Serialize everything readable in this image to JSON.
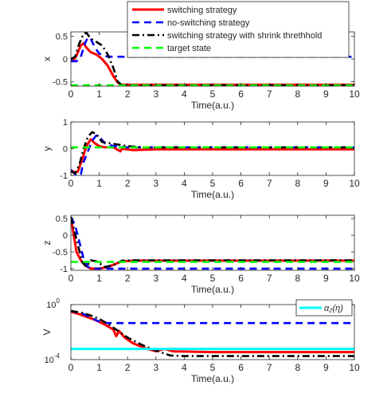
{
  "legend_main": {
    "entries": [
      {
        "label": "switching strategy",
        "color": "#ff0000",
        "dash": "solid"
      },
      {
        "label": "no-switching strategy",
        "color": "#0000ff",
        "dash": "dashed"
      },
      {
        "label": "switching strategy with shrink threthhold",
        "color": "#000000",
        "dash": "dashdot"
      },
      {
        "label": "target state",
        "color": "#00ff00",
        "dash": "dashed"
      }
    ]
  },
  "legend_v": {
    "entries": [
      {
        "label": "α₂(η)",
        "color": "#00ffff",
        "dash": "solid"
      }
    ]
  },
  "chart_data": [
    {
      "type": "line",
      "ylabel": "x",
      "xlabel": "Time(a.u.)",
      "xlim": [
        0,
        10
      ],
      "ylim": [
        -0.6,
        0.6
      ],
      "xticks": [
        "0",
        "1",
        "2",
        "3",
        "4",
        "5",
        "6",
        "7",
        "8",
        "9",
        "10"
      ],
      "yticks": [
        {
          "v": 0.5,
          "t": "0.5"
        },
        {
          "v": 0,
          "t": "0"
        },
        {
          "v": -0.5,
          "t": "-0.5"
        }
      ],
      "series": [
        {
          "name": "switching strategy",
          "points": [
            [
              0,
              0.0
            ],
            [
              0.1,
              -0.02
            ],
            [
              0.2,
              0.08
            ],
            [
              0.35,
              0.3
            ],
            [
              0.45,
              0.35
            ],
            [
              0.55,
              0.25
            ],
            [
              0.7,
              0.15
            ],
            [
              0.9,
              0.1
            ],
            [
              1.1,
              0.0
            ],
            [
              1.3,
              -0.15
            ],
            [
              1.5,
              -0.38
            ],
            [
              1.65,
              -0.52
            ],
            [
              1.75,
              -0.57
            ],
            [
              10,
              -0.57
            ]
          ]
        },
        {
          "name": "no-switching strategy",
          "points": [
            [
              0,
              -0.05
            ],
            [
              0.2,
              -0.05
            ],
            [
              0.35,
              0.05
            ],
            [
              0.5,
              0.35
            ],
            [
              0.6,
              0.48
            ],
            [
              0.7,
              0.45
            ],
            [
              0.85,
              0.25
            ],
            [
              1.0,
              0.12
            ],
            [
              1.2,
              0.06
            ],
            [
              1.5,
              0.05
            ],
            [
              2.0,
              0.05
            ],
            [
              10,
              0.05
            ]
          ]
        },
        {
          "name": "switching strategy with shrink threthhold",
          "points": [
            [
              0,
              0.0
            ],
            [
              0.15,
              0.05
            ],
            [
              0.3,
              0.35
            ],
            [
              0.45,
              0.56
            ],
            [
              0.55,
              0.58
            ],
            [
              0.7,
              0.45
            ],
            [
              0.9,
              0.38
            ],
            [
              1.1,
              0.3
            ],
            [
              1.3,
              0.1
            ],
            [
              1.5,
              -0.2
            ],
            [
              1.65,
              -0.5
            ],
            [
              1.8,
              -0.58
            ],
            [
              10,
              -0.58
            ]
          ]
        },
        {
          "name": "target state",
          "points": [
            [
              0,
              -0.58
            ],
            [
              10,
              -0.58
            ]
          ]
        }
      ]
    },
    {
      "type": "line",
      "ylabel": "y",
      "xlabel": "Time(a.u.)",
      "xlim": [
        0,
        10
      ],
      "ylim": [
        -1,
        1
      ],
      "xticks": [
        "0",
        "1",
        "2",
        "3",
        "4",
        "5",
        "6",
        "7",
        "8",
        "9",
        "10"
      ],
      "yticks": [
        {
          "v": 1,
          "t": "1"
        },
        {
          "v": 0,
          "t": "0"
        },
        {
          "v": -1,
          "t": "-1"
        }
      ],
      "series": [
        {
          "name": "switching strategy",
          "points": [
            [
              0,
              -0.8
            ],
            [
              0.15,
              -0.9
            ],
            [
              0.25,
              -0.85
            ],
            [
              0.4,
              -0.4
            ],
            [
              0.55,
              0.1
            ],
            [
              0.7,
              0.35
            ],
            [
              0.85,
              0.2
            ],
            [
              1.0,
              0.1
            ],
            [
              1.2,
              0.05
            ],
            [
              1.5,
              0.05
            ],
            [
              1.75,
              -0.1
            ],
            [
              1.8,
              0.0
            ],
            [
              2.2,
              -0.05
            ],
            [
              3,
              -0.02
            ],
            [
              10,
              -0.02
            ]
          ]
        },
        {
          "name": "no-switching strategy",
          "points": [
            [
              0,
              -0.8
            ],
            [
              0.2,
              -1.0
            ],
            [
              0.35,
              -0.95
            ],
            [
              0.45,
              -0.5
            ],
            [
              0.6,
              -0.1
            ],
            [
              0.75,
              0.3
            ],
            [
              0.9,
              0.5
            ],
            [
              1.0,
              0.45
            ],
            [
              1.2,
              0.2
            ],
            [
              1.5,
              0.1
            ],
            [
              2.0,
              0.05
            ],
            [
              10,
              0.05
            ]
          ]
        },
        {
          "name": "switching strategy with shrink threthhold",
          "points": [
            [
              0,
              -0.85
            ],
            [
              0.15,
              -0.92
            ],
            [
              0.3,
              -0.6
            ],
            [
              0.45,
              0.0
            ],
            [
              0.6,
              0.45
            ],
            [
              0.75,
              0.62
            ],
            [
              0.9,
              0.55
            ],
            [
              1.1,
              0.25
            ],
            [
              1.4,
              0.2
            ],
            [
              1.7,
              0.15
            ],
            [
              2.0,
              0.1
            ],
            [
              2.5,
              0.05
            ],
            [
              10,
              0.05
            ]
          ]
        },
        {
          "name": "target state",
          "points": [
            [
              0,
              0.05
            ],
            [
              10,
              0.05
            ]
          ]
        }
      ]
    },
    {
      "type": "line",
      "ylabel": "z",
      "xlabel": "Time(a.u.)",
      "xlim": [
        0,
        10
      ],
      "ylim": [
        -1.05,
        0.6
      ],
      "xticks": [
        "0",
        "1",
        "2",
        "3",
        "4",
        "5",
        "6",
        "7",
        "8",
        "9",
        "10"
      ],
      "yticks": [
        {
          "v": 0.5,
          "t": "0.5"
        },
        {
          "v": 0,
          "t": "0"
        },
        {
          "v": -0.5,
          "t": "-0.5"
        },
        {
          "v": -1,
          "t": "-1"
        }
      ],
      "series": [
        {
          "name": "switching strategy",
          "points": [
            [
              0,
              0.55
            ],
            [
              0.1,
              0.0
            ],
            [
              0.2,
              -0.5
            ],
            [
              0.35,
              -0.75
            ],
            [
              0.5,
              -0.9
            ],
            [
              0.7,
              -1.0
            ],
            [
              1.0,
              -1.0
            ],
            [
              1.3,
              -0.95
            ],
            [
              1.6,
              -0.85
            ],
            [
              1.8,
              -0.78
            ],
            [
              2.2,
              -0.76
            ],
            [
              10,
              -0.76
            ]
          ]
        },
        {
          "name": "no-switching strategy",
          "points": [
            [
              0,
              0.55
            ],
            [
              0.15,
              0.3
            ],
            [
              0.3,
              -0.2
            ],
            [
              0.45,
              -0.7
            ],
            [
              0.6,
              -0.95
            ],
            [
              0.8,
              -1.0
            ],
            [
              2.0,
              -1.0
            ],
            [
              10,
              -1.0
            ]
          ]
        },
        {
          "name": "switching strategy with shrink threthhold",
          "points": [
            [
              0,
              0.55
            ],
            [
              0.1,
              0.2
            ],
            [
              0.25,
              -0.3
            ],
            [
              0.4,
              -0.8
            ],
            [
              0.55,
              -0.95
            ],
            [
              0.7,
              -0.75
            ],
            [
              0.9,
              -0.78
            ],
            [
              1.2,
              -0.95
            ],
            [
              1.5,
              -0.9
            ],
            [
              1.8,
              -0.76
            ],
            [
              2.2,
              -0.75
            ],
            [
              10,
              -0.75
            ]
          ]
        },
        {
          "name": "target state",
          "points": [
            [
              0,
              -0.8
            ],
            [
              10,
              -0.8
            ]
          ]
        }
      ]
    },
    {
      "type": "line",
      "ylabel": "V",
      "xlabel": "Time(a.u.)",
      "yscale": "log",
      "xlim": [
        0,
        10
      ],
      "ylim": [
        0.0001,
        1
      ],
      "xticks": [
        "0",
        "1",
        "2",
        "3",
        "4",
        "5",
        "6",
        "7",
        "8",
        "9",
        "10"
      ],
      "yticks": [
        {
          "v": 1,
          "t": "10",
          "sup": "0"
        },
        {
          "v": 0.0001,
          "t": "10",
          "sup": "-4"
        }
      ],
      "series": [
        {
          "name": "switching strategy",
          "points": [
            [
              0,
              0.3
            ],
            [
              0.3,
              0.2
            ],
            [
              0.6,
              0.12
            ],
            [
              0.9,
              0.07
            ],
            [
              1.2,
              0.035
            ],
            [
              1.5,
              0.015
            ],
            [
              1.6,
              0.005
            ],
            [
              1.7,
              0.012
            ],
            [
              1.9,
              0.004
            ],
            [
              2.2,
              0.0015
            ],
            [
              2.6,
              0.0007
            ],
            [
              3.0,
              0.0004
            ],
            [
              3.3,
              0.0006
            ],
            [
              3.6,
              0.0004
            ],
            [
              5,
              0.00035
            ],
            [
              10,
              0.00035
            ]
          ]
        },
        {
          "name": "no-switching strategy",
          "points": [
            [
              0,
              0.35
            ],
            [
              0.4,
              0.22
            ],
            [
              0.7,
              0.12
            ],
            [
              0.9,
              0.07
            ],
            [
              1.1,
              0.05
            ],
            [
              1.3,
              0.045
            ],
            [
              2,
              0.045
            ],
            [
              10,
              0.045
            ]
          ]
        },
        {
          "name": "switching strategy with shrink threthhold",
          "points": [
            [
              0,
              0.35
            ],
            [
              0.4,
              0.25
            ],
            [
              0.7,
              0.16
            ],
            [
              1.0,
              0.09
            ],
            [
              1.3,
              0.04
            ],
            [
              1.6,
              0.015
            ],
            [
              2.0,
              0.004
            ],
            [
              2.5,
              0.0012
            ],
            [
              3.0,
              0.00045
            ],
            [
              3.5,
              0.0002
            ],
            [
              4,
              0.00018
            ],
            [
              10,
              0.00018
            ]
          ]
        },
        {
          "name": "α₂(η)",
          "points": [
            [
              0,
              0.0006
            ],
            [
              10,
              0.0006
            ]
          ]
        }
      ]
    }
  ]
}
